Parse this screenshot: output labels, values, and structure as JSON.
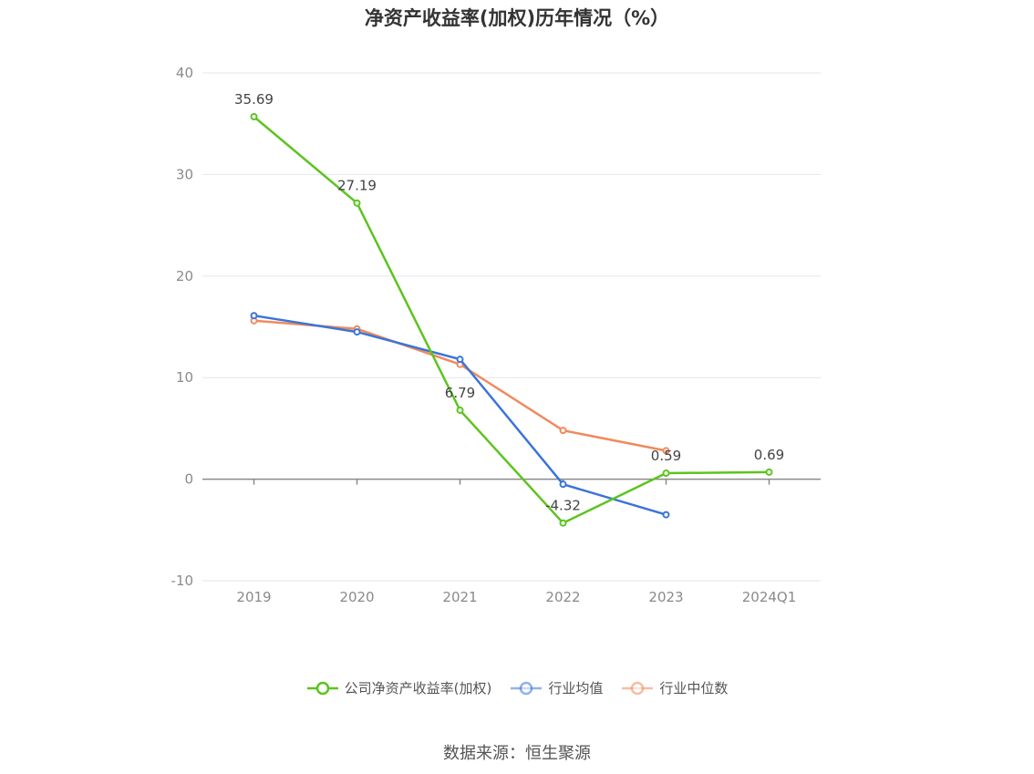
{
  "chart_data": {
    "type": "line",
    "title": "净资产收益率(加权)历年情况（%）",
    "categories": [
      "2019",
      "2020",
      "2021",
      "2022",
      "2023",
      "2024Q1"
    ],
    "ylim": [
      -10,
      40
    ],
    "yticks": [
      -10,
      0,
      10,
      20,
      30,
      40
    ],
    "grid": true,
    "legend_position": "bottom",
    "series": [
      {
        "name": "公司净资产收益率(加权)",
        "color": "#5cc41f",
        "values": [
          35.69,
          27.19,
          6.79,
          -4.32,
          0.59,
          0.69
        ],
        "labeled": true
      },
      {
        "name": "行业均值",
        "color": "#3a74d9",
        "values": [
          16.1,
          14.5,
          11.8,
          -0.5,
          -3.5,
          null
        ],
        "labeled": false
      },
      {
        "name": "行业中位数",
        "color": "#f08a5d",
        "values": [
          15.6,
          14.8,
          11.3,
          4.8,
          2.8,
          null
        ],
        "labeled": false
      }
    ]
  },
  "source": "数据来源：恒生聚源"
}
